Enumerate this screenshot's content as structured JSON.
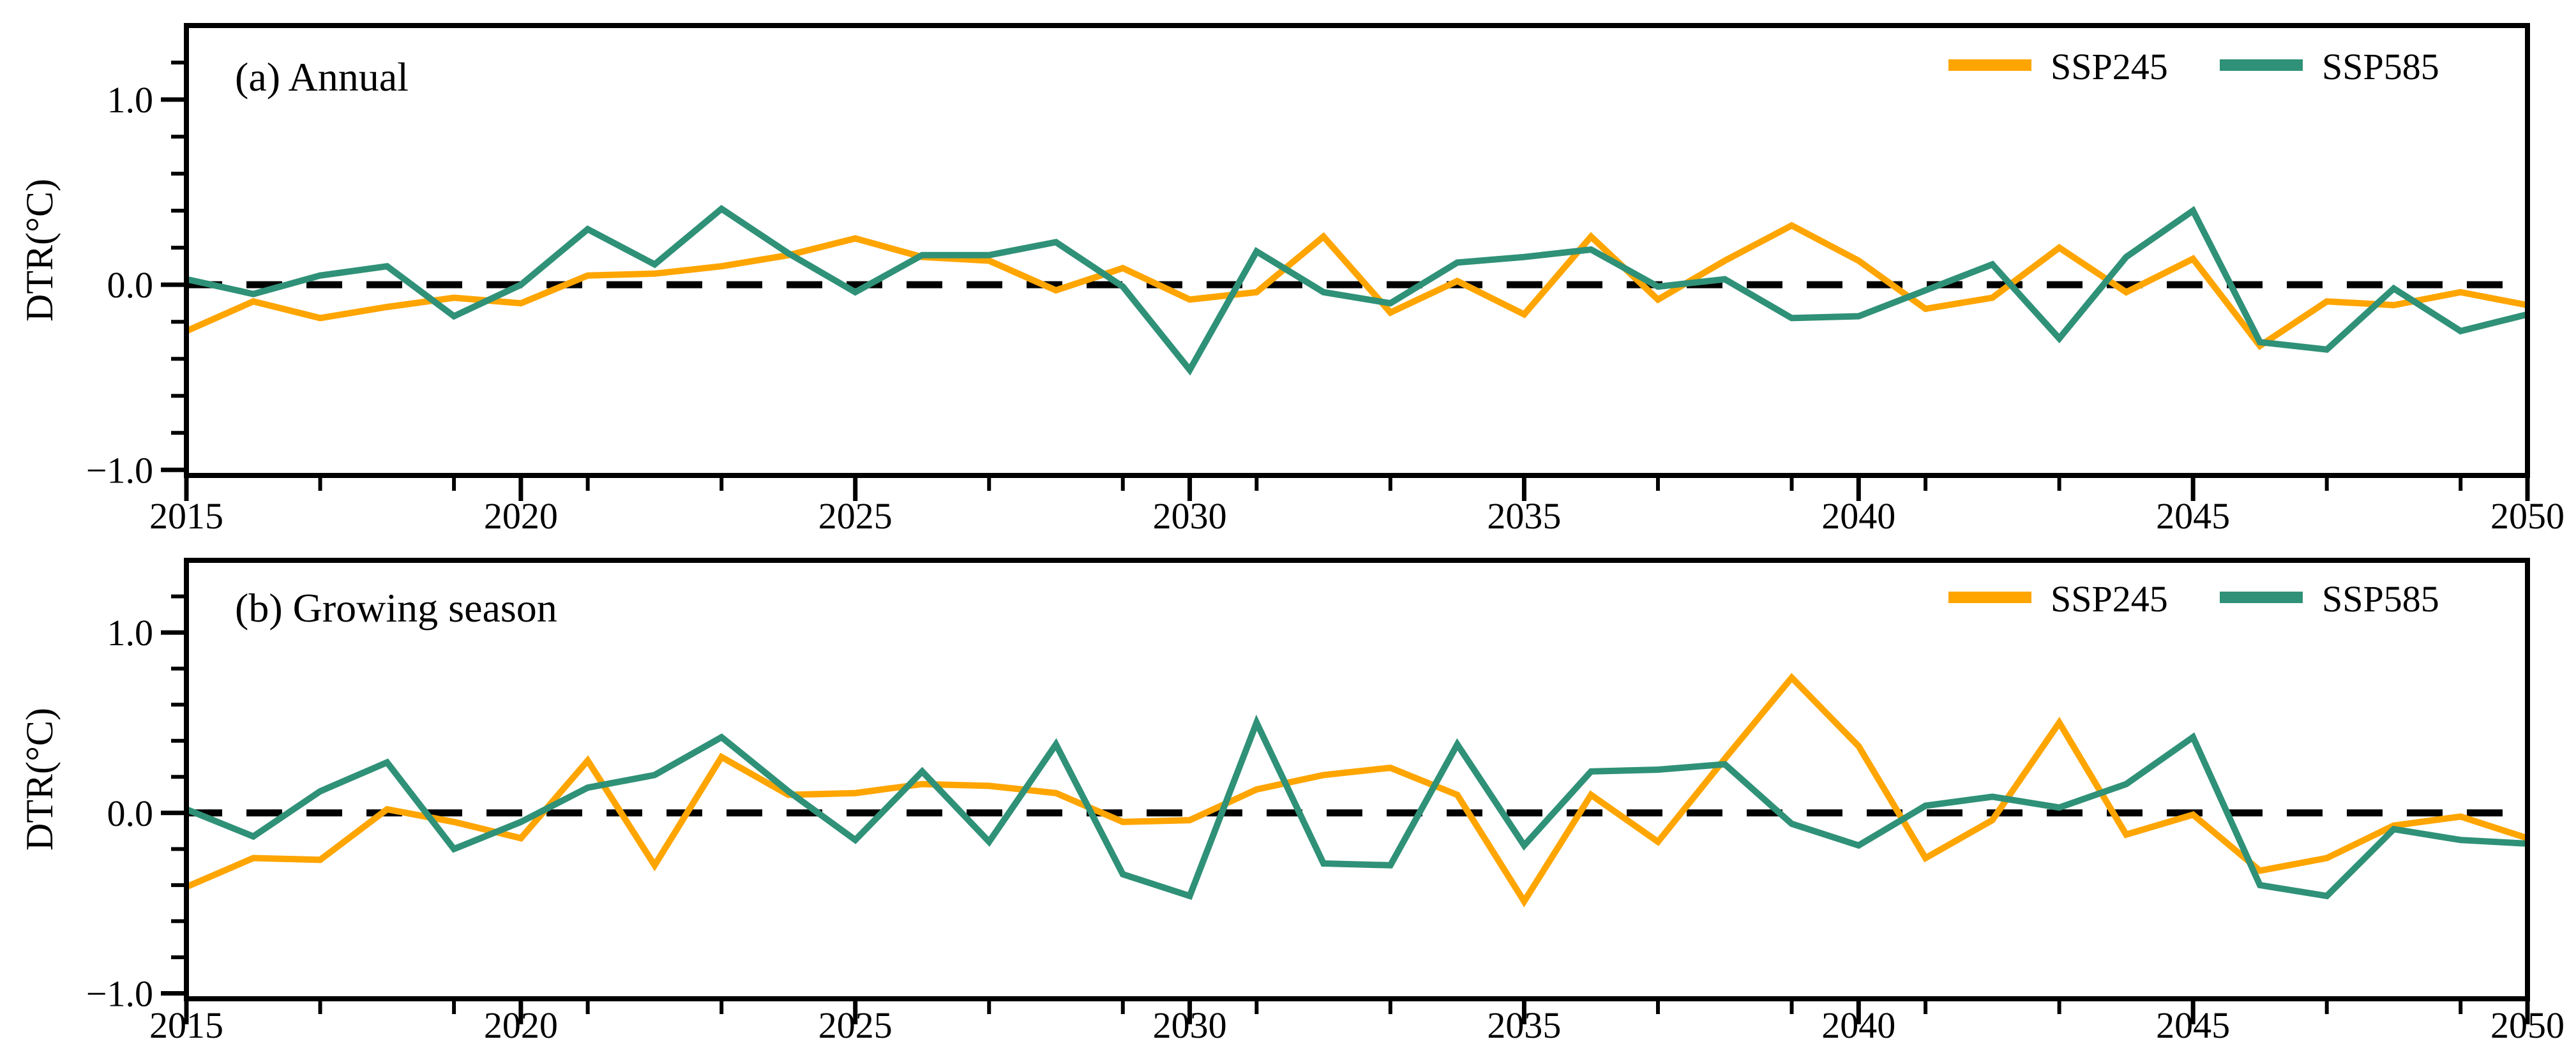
{
  "figure": {
    "background_color": "#ffffff",
    "axis_color": "#000000",
    "zero_line_color": "#000000"
  },
  "legend": {
    "entries": [
      {
        "label": "SSP245",
        "color": "#FFA500"
      },
      {
        "label": "SSP585",
        "color": "#2F9177"
      }
    ]
  },
  "chart_data": [
    {
      "type": "line",
      "panel": "a",
      "title": "(a) Annual",
      "ylabel": "DTR(°C)",
      "xlim": [
        2015,
        2050
      ],
      "ylim": [
        -1.03,
        1.4
      ],
      "grid": false,
      "zero_line": true,
      "legend_position": "top-right",
      "xticks_major": [
        2015,
        2020,
        2025,
        2030,
        2035,
        2040,
        2045,
        2050
      ],
      "xtick_labels": [
        "2015",
        "2020",
        "2025",
        "2030",
        "2035",
        "2040",
        "2045",
        "2050"
      ],
      "xticks_minor": [
        2017,
        2019,
        2021,
        2023,
        2027,
        2029,
        2031,
        2033,
        2037,
        2039,
        2041,
        2043,
        2047,
        2049
      ],
      "yticks_major": [
        -1.0,
        0.0,
        1.0
      ],
      "ytick_labels": [
        "−1.0",
        "0.0",
        "1.0"
      ],
      "yticks_minor": [
        -0.8,
        -0.6,
        -0.4,
        -0.2,
        0.2,
        0.4,
        0.6,
        0.8,
        1.2
      ],
      "x": [
        2015,
        2016,
        2017,
        2018,
        2019,
        2020,
        2021,
        2022,
        2023,
        2024,
        2025,
        2026,
        2027,
        2028,
        2029,
        2030,
        2031,
        2032,
        2033,
        2034,
        2035,
        2036,
        2037,
        2038,
        2039,
        2040,
        2041,
        2042,
        2043,
        2044,
        2045,
        2046,
        2047,
        2048,
        2049,
        2050
      ],
      "series": [
        {
          "name": "SSP245",
          "color": "#FFA500",
          "values": [
            -0.25,
            -0.09,
            -0.18,
            -0.12,
            -0.07,
            -0.1,
            0.05,
            0.06,
            0.1,
            0.16,
            0.25,
            0.15,
            0.13,
            -0.03,
            0.09,
            -0.08,
            -0.04,
            0.26,
            -0.15,
            0.02,
            -0.16,
            0.26,
            -0.08,
            0.13,
            0.32,
            0.13,
            -0.13,
            -0.07,
            0.2,
            -0.04,
            0.14,
            -0.33,
            -0.09,
            -0.11,
            -0.04,
            -0.11
          ]
        },
        {
          "name": "SSP585",
          "color": "#2F9177",
          "values": [
            0.03,
            -0.05,
            0.05,
            0.1,
            -0.17,
            0.0,
            0.3,
            0.11,
            0.41,
            0.17,
            -0.04,
            0.16,
            0.16,
            0.23,
            -0.01,
            -0.46,
            0.18,
            -0.04,
            -0.1,
            0.12,
            0.15,
            0.19,
            -0.01,
            0.03,
            -0.18,
            -0.17,
            -0.03,
            0.11,
            -0.29,
            0.15,
            0.4,
            -0.31,
            -0.35,
            -0.02,
            -0.25,
            -0.16
          ]
        }
      ]
    },
    {
      "type": "line",
      "panel": "b",
      "title": "(b) Growing season",
      "ylabel": "DTR(°C)",
      "xlim": [
        2015,
        2050
      ],
      "ylim": [
        -1.03,
        1.4
      ],
      "grid": false,
      "zero_line": true,
      "legend_position": "top-right",
      "xticks_major": [
        2015,
        2020,
        2025,
        2030,
        2035,
        2040,
        2045,
        2050
      ],
      "xtick_labels": [
        "2015",
        "2020",
        "2025",
        "2030",
        "2035",
        "2040",
        "2045",
        "2050"
      ],
      "xticks_minor": [
        2017,
        2019,
        2021,
        2023,
        2027,
        2029,
        2031,
        2033,
        2037,
        2039,
        2041,
        2043,
        2047,
        2049
      ],
      "yticks_major": [
        -1.0,
        0.0,
        1.0
      ],
      "ytick_labels": [
        "−1.0",
        "0.0",
        "1.0"
      ],
      "yticks_minor": [
        -0.8,
        -0.6,
        -0.4,
        -0.2,
        0.2,
        0.4,
        0.6,
        0.8,
        1.2
      ],
      "x": [
        2015,
        2016,
        2017,
        2018,
        2019,
        2020,
        2021,
        2022,
        2023,
        2024,
        2025,
        2026,
        2027,
        2028,
        2029,
        2030,
        2031,
        2032,
        2033,
        2034,
        2035,
        2036,
        2037,
        2038,
        2039,
        2040,
        2041,
        2042,
        2043,
        2044,
        2045,
        2046,
        2047,
        2048,
        2049,
        2050
      ],
      "series": [
        {
          "name": "SSP245",
          "color": "#FFA500",
          "values": [
            -0.41,
            -0.25,
            -0.26,
            0.02,
            -0.05,
            -0.14,
            0.29,
            -0.29,
            0.31,
            0.1,
            0.11,
            0.16,
            0.15,
            0.11,
            -0.05,
            -0.04,
            0.13,
            0.21,
            0.25,
            0.1,
            -0.49,
            0.1,
            -0.16,
            0.3,
            0.75,
            0.37,
            -0.25,
            -0.04,
            0.5,
            -0.12,
            -0.01,
            -0.32,
            -0.25,
            -0.07,
            -0.02,
            -0.14
          ]
        },
        {
          "name": "SSP585",
          "color": "#2F9177",
          "values": [
            0.02,
            -0.13,
            0.12,
            0.28,
            -0.2,
            -0.05,
            0.14,
            0.21,
            0.42,
            0.12,
            -0.15,
            0.23,
            -0.16,
            0.38,
            -0.34,
            -0.46,
            0.5,
            -0.28,
            -0.29,
            0.38,
            -0.18,
            0.23,
            0.24,
            0.27,
            -0.06,
            -0.18,
            0.04,
            0.09,
            0.03,
            0.16,
            0.42,
            -0.4,
            -0.46,
            -0.09,
            -0.15,
            -0.17
          ]
        }
      ]
    }
  ]
}
